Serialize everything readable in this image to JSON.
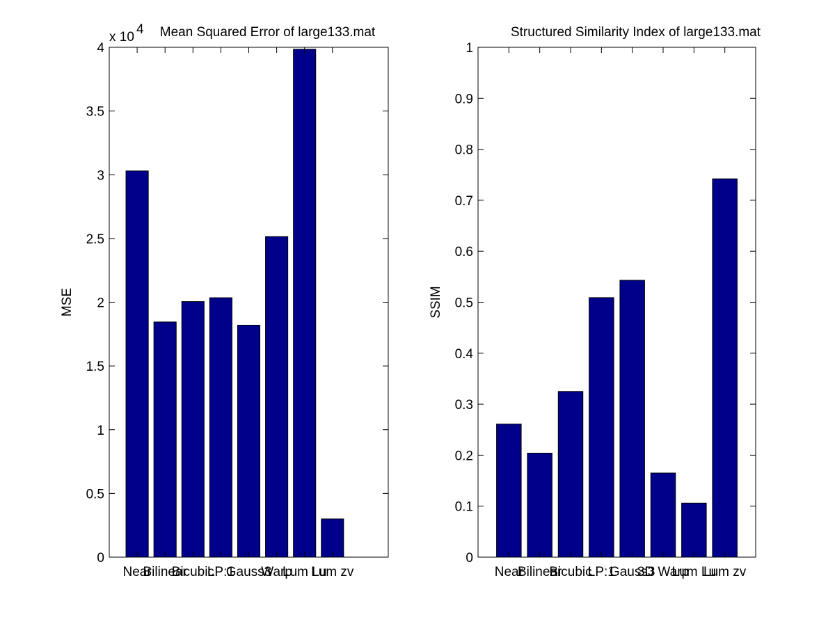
{
  "chart_data": [
    {
      "type": "bar",
      "title": "Mean Squared Error of large133.mat",
      "xlabel": "",
      "ylabel": "MSE",
      "exponent_label": "x 10",
      "exponent_power": "4",
      "categories": [
        "Near",
        "Bilinear",
        "Bicubic",
        "LP:1",
        "Gauss3",
        "Warp",
        "Lum Lu",
        "Lum zv"
      ],
      "values": [
        3.03,
        1.845,
        2.005,
        2.035,
        1.82,
        2.515,
        3.985,
        0.3
      ],
      "ylim": [
        0,
        4
      ],
      "yticks": [
        0,
        0.5,
        1,
        1.5,
        2,
        2.5,
        3,
        3.5,
        4
      ],
      "ytick_labels": [
        "0",
        "0.5",
        "1",
        "1.5",
        "2",
        "2.5",
        "3",
        "3.5",
        "4"
      ],
      "n_slots": 9,
      "bar_color": "#00008B",
      "grid": false
    },
    {
      "type": "bar",
      "title": "Structured Similarity Index of large133.mat",
      "xlabel": "",
      "ylabel": "SSIM",
      "categories": [
        "Near",
        "Bilinear",
        "Bicubic",
        "LP:1",
        "Gauss3",
        "3D Warp",
        "Lum Lu",
        "Lum zv"
      ],
      "values": [
        0.261,
        0.204,
        0.325,
        0.509,
        0.543,
        0.165,
        0.106,
        0.742
      ],
      "ylim": [
        0,
        1
      ],
      "yticks": [
        0,
        0.1,
        0.2,
        0.3,
        0.4,
        0.5,
        0.6,
        0.7,
        0.8,
        0.9,
        1
      ],
      "ytick_labels": [
        "0",
        "0.1",
        "0.2",
        "0.3",
        "0.4",
        "0.5",
        "0.6",
        "0.7",
        "0.8",
        "0.9",
        "1"
      ],
      "n_slots": 8,
      "bar_color": "#00008B",
      "grid": false
    }
  ]
}
